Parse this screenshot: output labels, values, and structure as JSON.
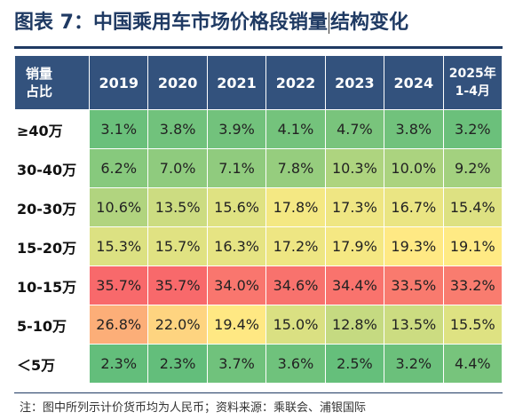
{
  "title_part1": "图表 7：中国乘用车市场价格段销量",
  "title_part2": "结构变化",
  "table": {
    "corner_line1": "销量",
    "corner_line2": "占比",
    "years": [
      "2019",
      "2020",
      "2021",
      "2022",
      "2023",
      "2024"
    ],
    "last_col_line1": "2025年",
    "last_col_line2": "1-4月",
    "rows": [
      {
        "label": "≥40万",
        "values": [
          "3.1%",
          "3.8%",
          "3.9%",
          "4.1%",
          "4.7%",
          "3.8%",
          "3.2%"
        ]
      },
      {
        "label": "30-40万",
        "values": [
          "6.2%",
          "7.0%",
          "7.1%",
          "7.8%",
          "10.3%",
          "10.0%",
          "9.2%"
        ]
      },
      {
        "label": "20-30万",
        "values": [
          "10.6%",
          "13.5%",
          "15.6%",
          "17.8%",
          "17.3%",
          "16.7%",
          "15.4%"
        ]
      },
      {
        "label": "15-20万",
        "values": [
          "15.3%",
          "15.7%",
          "16.3%",
          "17.2%",
          "17.9%",
          "19.3%",
          "19.1%"
        ]
      },
      {
        "label": "10-15万",
        "values": [
          "35.7%",
          "35.7%",
          "34.0%",
          "34.6%",
          "34.4%",
          "33.5%",
          "33.2%"
        ]
      },
      {
        "label": "5-10万",
        "values": [
          "26.8%",
          "22.0%",
          "19.4%",
          "15.0%",
          "12.8%",
          "13.5%",
          "15.5%"
        ]
      },
      {
        "label": "＜5万",
        "values": [
          "2.3%",
          "2.3%",
          "3.7%",
          "3.6%",
          "2.5%",
          "3.2%",
          "4.4%"
        ]
      }
    ]
  },
  "note": "注：图中所列示计价货币均为人民币；资料来源：乘联会、浦银国际",
  "colors": {
    "title": "#1f3a63",
    "header_bg": "#33527d",
    "heat_low": "#63be7b",
    "heat_mid": "#ffeb84",
    "heat_high": "#f8696b"
  }
}
